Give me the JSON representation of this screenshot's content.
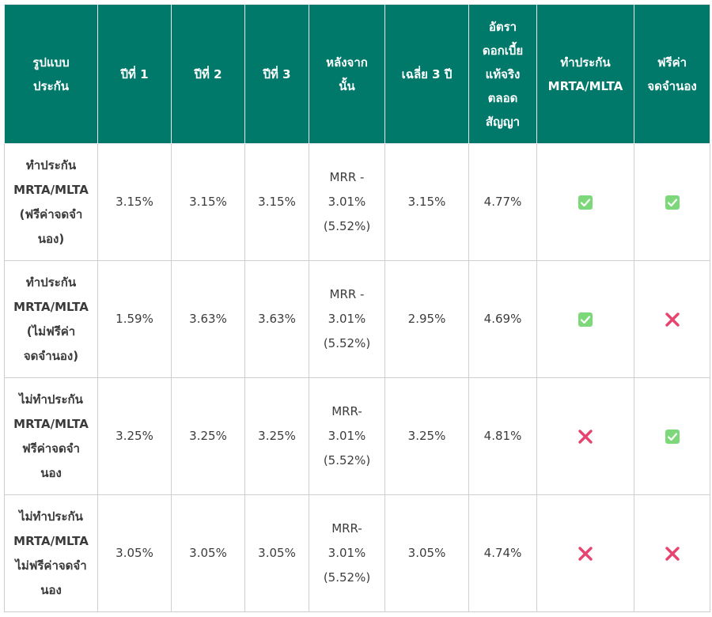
{
  "table": {
    "headers": [
      "รูปแบบ\nประกัน",
      "ปีที่ 1",
      "ปีที่ 2",
      "ปีที่ 3",
      "หลังจาก\nนั้น",
      "เฉลี่ย 3 ปี",
      "อัตรา\nดอกเบี้ย\nแท้จริง\nตลอด\nสัญญา",
      "ทำประกัน\nMRTA/MLTA",
      "ฟรีค่า\nจดจำนอง"
    ],
    "rows": [
      {
        "type": "ทำประกัน\nMRTA/MLTA\n(ฟรีค่าจดจำ\nนอง)",
        "year1": "3.15%",
        "year2": "3.15%",
        "year3": "3.15%",
        "after": "MRR -\n3.01%\n(5.52%)",
        "avg3": "3.15%",
        "effective": "4.77%",
        "insurance_icon": "check-icon",
        "free_fee_icon": "check-icon"
      },
      {
        "type": "ทำประกัน\nMRTA/MLTA\n(ไม่ฟรีค่า\nจดจำนอง)",
        "year1": "1.59%",
        "year2": "3.63%",
        "year3": "3.63%",
        "after": "MRR -\n3.01%\n(5.52%)",
        "avg3": "2.95%",
        "effective": "4.69%",
        "insurance_icon": "check-icon",
        "free_fee_icon": "cross-icon"
      },
      {
        "type": "ไม่ทำประกัน\nMRTA/MLTA\nฟรีค่าจดจำ\nนอง",
        "year1": "3.25%",
        "year2": "3.25%",
        "year3": "3.25%",
        "after": "MRR-\n3.01%\n(5.52%)",
        "avg3": "3.25%",
        "effective": "4.81%",
        "insurance_icon": "cross-icon",
        "free_fee_icon": "check-icon"
      },
      {
        "type": "ไม่ทำประกัน\nMRTA/MLTA\nไม่ฟรีค่าจดจำ\nนอง",
        "year1": "3.05%",
        "year2": "3.05%",
        "year3": "3.05%",
        "after": "MRR-\n3.01%\n(5.52%)",
        "avg3": "3.05%",
        "effective": "4.74%",
        "insurance_icon": "cross-icon",
        "free_fee_icon": "cross-icon"
      }
    ]
  },
  "colors": {
    "header_bg": "#00796b",
    "header_text": "#ffffff",
    "check": "#7dd87a",
    "cross": "#e8436e"
  }
}
